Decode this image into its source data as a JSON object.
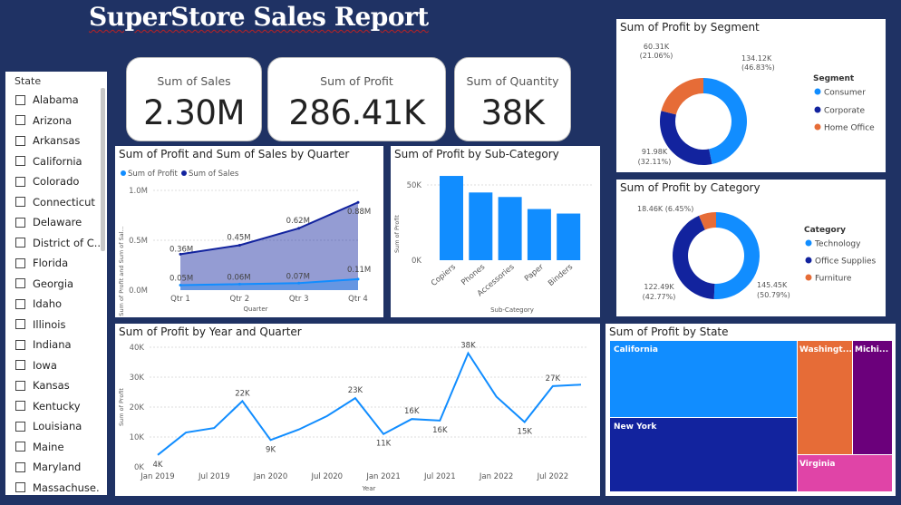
{
  "title": "SuperStore Sales Report",
  "slicer": {
    "label": "State",
    "items": [
      "Alabama",
      "Arizona",
      "Arkansas",
      "California",
      "Colorado",
      "Connecticut",
      "Delaware",
      "District of C...",
      "Florida",
      "Georgia",
      "Idaho",
      "Illinois",
      "Indiana",
      "Iowa",
      "Kansas",
      "Kentucky",
      "Louisiana",
      "Maine",
      "Maryland",
      "Massachuse..."
    ]
  },
  "cards": [
    {
      "label": "Sum of Sales",
      "value": "2.30M"
    },
    {
      "label": "Sum of Profit",
      "value": "286.41K"
    },
    {
      "label": "Sum of Quantity",
      "value": "38K"
    }
  ],
  "colors": {
    "profit": "#118dff",
    "sales": "#12239e",
    "home_office": "#e66c37",
    "purple": "#6b007b",
    "pink": "#e044a7",
    "background": "#1f3264"
  },
  "quarter_chart": {
    "title": "Sum of Profit and Sum of Sales by Quarter",
    "legend": [
      "Sum of Profit",
      "Sum of Sales"
    ],
    "ylabel": "Sum of Profit and Sum of Sal...",
    "xlabel": "Quarter",
    "y_ticks": [
      "1.0M",
      "0.5M",
      "0.0M"
    ],
    "categories": [
      "Qtr 1",
      "Qtr 2",
      "Qtr 3",
      "Qtr 4"
    ],
    "sales_labels": [
      "0.36M",
      "0.45M",
      "0.62M",
      "0.88M"
    ],
    "profit_labels": [
      "0.05M",
      "0.06M",
      "0.07M",
      "0.11M"
    ]
  },
  "subcat_chart": {
    "title": "Sum of Profit by Sub-Category",
    "ylabel": "Sum of Profit",
    "xlabel": "Sub-Category",
    "y_ticks": [
      "50K",
      "0K"
    ],
    "categories": [
      "Copiers",
      "Phones",
      "Accessories",
      "Paper",
      "Binders"
    ]
  },
  "segment_chart": {
    "title": "Sum of Profit by Segment",
    "legend_title": "Segment",
    "legend": [
      "Consumer",
      "Corporate",
      "Home Office"
    ],
    "labels": {
      "home_office": [
        "60.31K",
        "(21.06%)"
      ],
      "consumer": [
        "134.12K",
        "(46.83%)"
      ],
      "corporate": [
        "91.98K",
        "(32.11%)"
      ]
    }
  },
  "category_chart": {
    "title": "Sum of Profit by Category",
    "legend_title": "Category",
    "legend": [
      "Technology",
      "Office Supplies",
      "Furniture"
    ],
    "labels": {
      "furniture": "18.46K (6.45%)",
      "office": [
        "122.49K",
        "(42.77%)"
      ],
      "technology": [
        "145.45K",
        "(50.79%)"
      ]
    }
  },
  "year_chart": {
    "title": "Sum of Profit by Year and Quarter",
    "ylabel": "Sum of Profit",
    "xlabel": "Year",
    "y_ticks": [
      "40K",
      "30K",
      "20K",
      "10K",
      "0K"
    ],
    "x_ticks": [
      "Jan 2019",
      "Jul 2019",
      "Jan 2020",
      "Jul 2020",
      "Jan 2021",
      "Jul 2021",
      "Jan 2022",
      "Jul 2022"
    ],
    "point_labels": [
      "4K",
      "22K",
      "9K",
      "23K",
      "11K",
      "16K",
      "16K",
      "38K",
      "15K",
      "27K"
    ]
  },
  "state_chart": {
    "title": "Sum of Profit by State",
    "tiles": [
      "California",
      "New York",
      "Washingt...",
      "Michi...",
      "Virginia"
    ]
  },
  "chart_data": [
    {
      "type": "area",
      "title": "Sum of Profit and Sum of Sales by Quarter",
      "categories": [
        "Qtr 1",
        "Qtr 2",
        "Qtr 3",
        "Qtr 4"
      ],
      "series": [
        {
          "name": "Sum of Profit",
          "values": [
            0.05,
            0.06,
            0.07,
            0.11
          ]
        },
        {
          "name": "Sum of Sales",
          "values": [
            0.36,
            0.45,
            0.62,
            0.88
          ]
        }
      ],
      "xlabel": "Quarter",
      "ylim": [
        0,
        1.0
      ]
    },
    {
      "type": "bar",
      "title": "Sum of Profit by Sub-Category",
      "categories": [
        "Copiers",
        "Phones",
        "Accessories",
        "Paper",
        "Binders"
      ],
      "values": [
        56,
        45,
        42,
        34,
        31
      ],
      "xlabel": "Sub-Category",
      "ylabel": "Sum of Profit"
    },
    {
      "type": "pie",
      "title": "Sum of Profit by Segment",
      "categories": [
        "Consumer",
        "Corporate",
        "Home Office"
      ],
      "values": [
        134.12,
        91.98,
        60.31
      ]
    },
    {
      "type": "pie",
      "title": "Sum of Profit by Category",
      "categories": [
        "Technology",
        "Office Supplies",
        "Furniture"
      ],
      "values": [
        145.45,
        122.49,
        18.46
      ]
    },
    {
      "type": "line",
      "title": "Sum of Profit by Year and Quarter",
      "x": [
        "2019 Q1",
        "2019 Q2",
        "2019 Q3",
        "2019 Q4",
        "2020 Q1",
        "2020 Q2",
        "2020 Q3",
        "2020 Q4",
        "2021 Q1",
        "2021 Q2",
        "2021 Q3",
        "2021 Q4",
        "2022 Q1",
        "2022 Q2",
        "2022 Q3",
        "2022 Q4"
      ],
      "values": [
        4,
        11.5,
        13,
        22,
        9,
        12.5,
        17,
        23,
        11,
        16,
        15.5,
        38,
        23.5,
        15,
        27,
        27.5
      ],
      "xlabel": "Year",
      "ylabel": "Sum of Profit",
      "ylim": [
        0,
        40
      ]
    },
    {
      "type": "treemap",
      "title": "Sum of Profit by State",
      "categories": [
        "California",
        "New York",
        "Washingt...",
        "Michi...",
        "Virginia"
      ],
      "values": [
        76,
        74,
        33,
        24,
        18
      ]
    }
  ]
}
